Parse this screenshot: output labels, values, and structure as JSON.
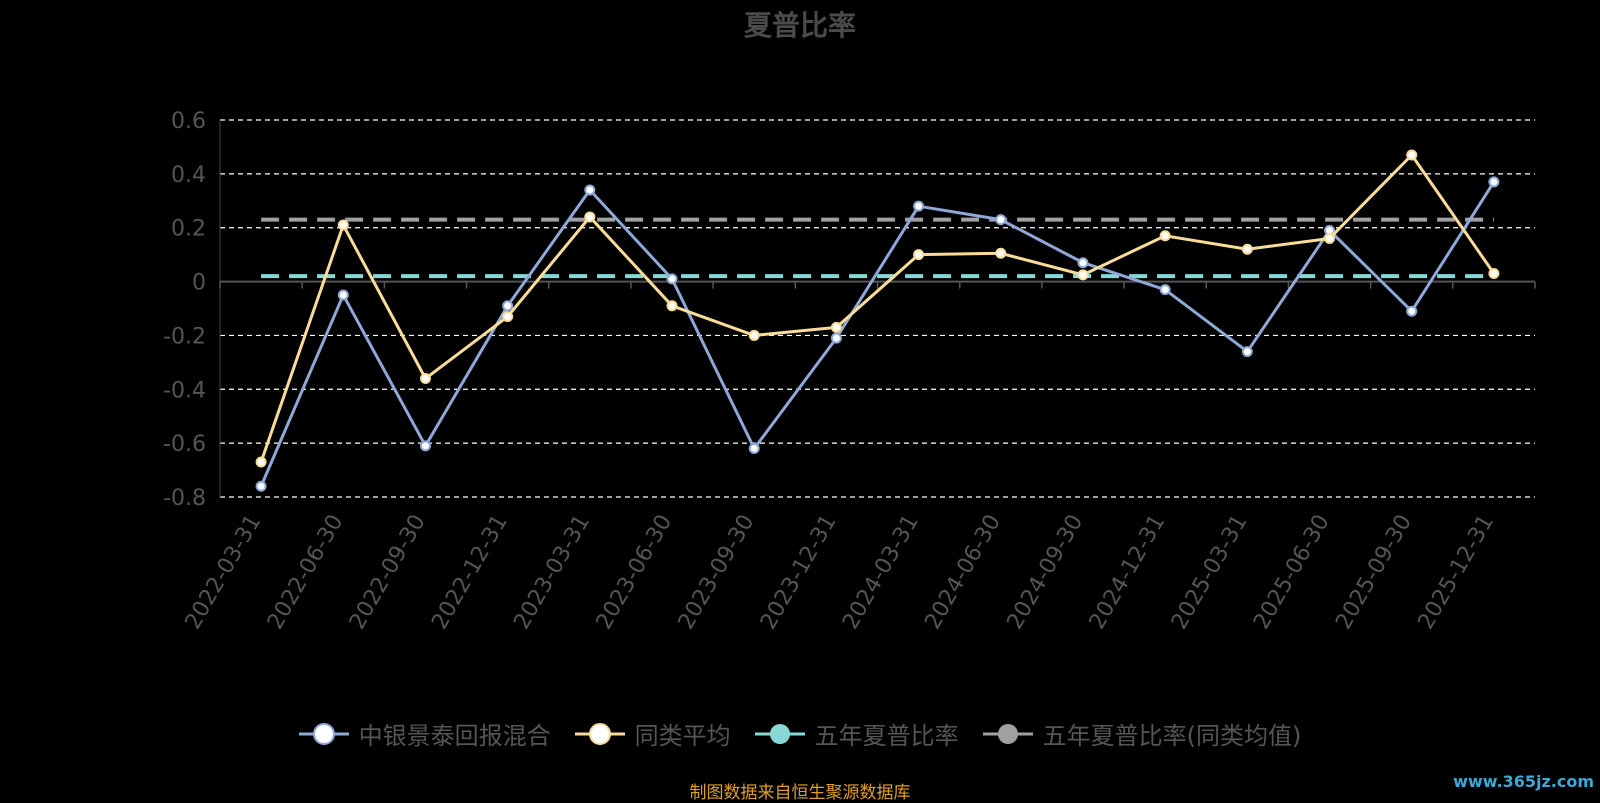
{
  "chart_data": {
    "type": "line",
    "title": "夏普比率",
    "x": [
      "2022-03-31",
      "2022-06-30",
      "2022-09-30",
      "2022-12-31",
      "2023-03-31",
      "2023-06-30",
      "2023-09-30",
      "2023-12-31",
      "2024-03-31",
      "2024-06-30",
      "2024-09-30",
      "2024-12-31",
      "2025-03-31",
      "2025-06-30",
      "2025-09-30",
      "2025-12-31"
    ],
    "ylim": [
      -0.8,
      0.6
    ],
    "yticks": [
      0.6,
      0.4,
      0.2,
      0,
      -0.2,
      -0.4,
      -0.6,
      -0.8
    ],
    "ytick_labels": [
      "0.6",
      "0.4",
      "0.2",
      "0",
      "-0.2",
      "-0.4",
      "-0.6",
      "-0.8"
    ],
    "grid": true,
    "legend_position": "bottom",
    "series": [
      {
        "name": "中银景泰回报混合",
        "color": "#8ea8d8",
        "values": [
          -0.76,
          -0.05,
          -0.61,
          -0.09,
          0.34,
          0.01,
          -0.62,
          -0.21,
          0.28,
          0.23,
          0.07,
          -0.03,
          -0.26,
          0.19,
          -0.11,
          0.37
        ]
      },
      {
        "name": "同类平均",
        "color": "#f8dc98",
        "values": [
          -0.67,
          0.21,
          -0.36,
          -0.13,
          0.24,
          -0.09,
          -0.2,
          -0.17,
          0.1,
          0.105,
          0.025,
          0.17,
          0.12,
          0.16,
          0.47,
          0.03
        ]
      },
      {
        "name": "五年夏普比率",
        "color": "#88d8d8",
        "dashed": true,
        "constant": 0.02
      },
      {
        "name": "五年夏普比率(同类均值)",
        "color": "#a0a0a0",
        "dashed": true,
        "constant": 0.23
      }
    ]
  },
  "footer": {
    "source": "制图数据来自恒生聚源数据库",
    "watermark": "www.365jz.com"
  },
  "colors": {
    "background": "#000000",
    "axis": "#555555",
    "grid": "#ffffff",
    "source_text": "#e0a020"
  }
}
